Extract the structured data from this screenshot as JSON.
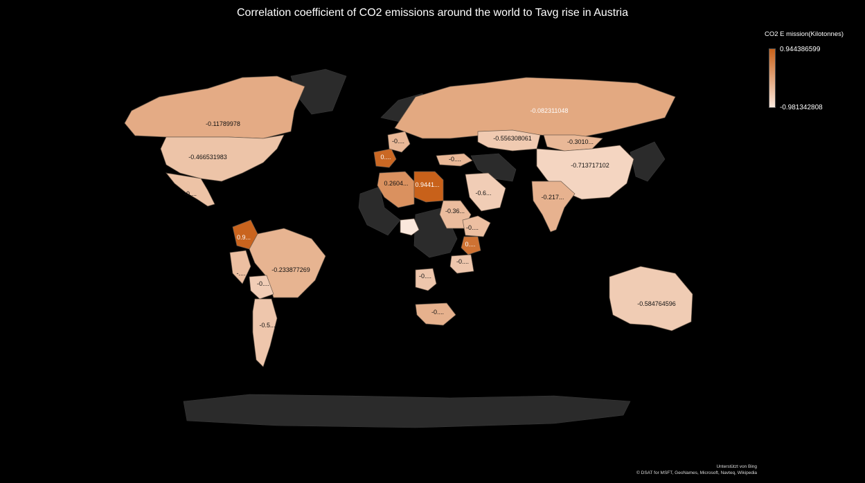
{
  "title": "Correlation coefficient of CO2 emissions around the world to Tavg rise in Austria",
  "legend": {
    "title": "CO2 E mission(Kilotonnes)",
    "max_label": "0.944386599",
    "min_label": "-0.981342808",
    "max_color": "#c8611a",
    "min_color": "#fbe8dc"
  },
  "credit": {
    "line1": "Unterstützt von Bing",
    "line2": "© DSAT for MSFT, GeoNames, Microsoft, Navteq, Wikipedia"
  },
  "colors": {
    "background": "#000000",
    "no_data": "#2b2b2b",
    "border": "#6b5a4c"
  },
  "regions": [
    {
      "name": "Canada",
      "label": "-0.11789978",
      "value": -0.11789978
    },
    {
      "name": "USA",
      "label": "-0.466531983",
      "value": -0.466531983
    },
    {
      "name": "Mexico",
      "label": "-0....",
      "value": -0.45
    },
    {
      "name": "Russia",
      "label": "-0.082311048",
      "value": -0.082311048
    },
    {
      "name": "Kazakhstan",
      "label": "-0.556308061",
      "value": -0.556308061
    },
    {
      "name": "Mongolia",
      "label": "-0.3010...",
      "value": -0.301
    },
    {
      "name": "China",
      "label": "-0.713717102",
      "value": -0.713717102
    },
    {
      "name": "Spain",
      "label": "0....",
      "value": 0.85
    },
    {
      "name": "France",
      "label": "-0....",
      "value": -0.3
    },
    {
      "name": "Turkey",
      "label": "-0....",
      "value": -0.3
    },
    {
      "name": "Algeria",
      "label": "0.2604...",
      "value": 0.2604
    },
    {
      "name": "Libya",
      "label": "0.9441...",
      "value": 0.9441
    },
    {
      "name": "Saudi Arabia",
      "label": "-0.6...",
      "value": -0.6
    },
    {
      "name": "India",
      "label": "-0.217...",
      "value": -0.217
    },
    {
      "name": "Sudan",
      "label": "-0.36...",
      "value": -0.36
    },
    {
      "name": "Ethiopia",
      "label": "-0....",
      "value": -0.4
    },
    {
      "name": "Kenya",
      "label": "0....",
      "value": 0.7
    },
    {
      "name": "Tanzania",
      "label": "-0....",
      "value": -0.5
    },
    {
      "name": "Angola",
      "label": "-0....",
      "value": -0.5
    },
    {
      "name": "South Africa",
      "label": "-0....",
      "value": -0.2
    },
    {
      "name": "Colombia",
      "label": "0.9...",
      "value": 0.9
    },
    {
      "name": "Brazil",
      "label": "-0.233877269",
      "value": -0.233877269
    },
    {
      "name": "Bolivia",
      "label": "-0....",
      "value": -0.6
    },
    {
      "name": "Argentina",
      "label": "-0.5...",
      "value": -0.5
    },
    {
      "name": "Peru",
      "label": "-....",
      "value": -0.4
    },
    {
      "name": "Australia",
      "label": "-0.584764596",
      "value": -0.584764596
    },
    {
      "name": "Nigeria",
      "label": "",
      "value": -0.98
    }
  ]
}
